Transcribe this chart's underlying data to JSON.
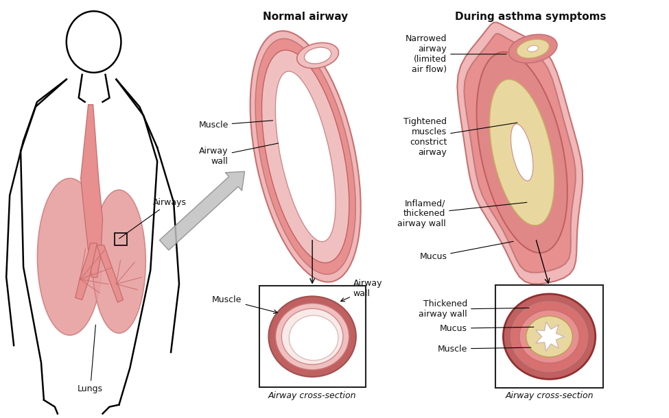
{
  "title_normal": "Normal airway",
  "title_asthma": "During asthma symptoms",
  "bg_color": "#ffffff",
  "fig_width": 9.75,
  "fig_height": 6.1,
  "labels": {
    "airways": "Airways",
    "lungs": "Lungs",
    "muscle_normal": "Muscle",
    "airway_wall_normal": "Airway\nwall",
    "narrowed": "Narrowed\nairway\n(limited\nair flow)",
    "tightened": "Tightened\nmuscles\nconstrict\nairway",
    "inflamed": "Inflamed/\nthickened\nairway wall",
    "mucus_asthma": "Mucus",
    "muscle_cross_normal": "Muscle",
    "airway_wall_cross_normal": "Airway\nwall",
    "cross_section_label": "Airway cross-section",
    "thickened_wall": "Thickened\nairway wall",
    "mucus_cross": "Mucus",
    "muscle_cross": "Muscle"
  },
  "colors": {
    "skin_light": "#f0b8b8",
    "skin_medium": "#e89090",
    "skin_dark": "#c87070",
    "lung_fill": "#e8a0a0",
    "lung_outer": "#d08080",
    "airway_outer": "#c87878",
    "airway_inner": "#f0c0c0",
    "muscle_color": "#c06060",
    "wall_color": "#d08888",
    "mucus_color": "#e8d8a0",
    "white_space": "#ffffff",
    "outline": "#000000",
    "arrow_gray": "#aaaaaa",
    "box_outline": "#222222",
    "text_color": "#111111"
  }
}
